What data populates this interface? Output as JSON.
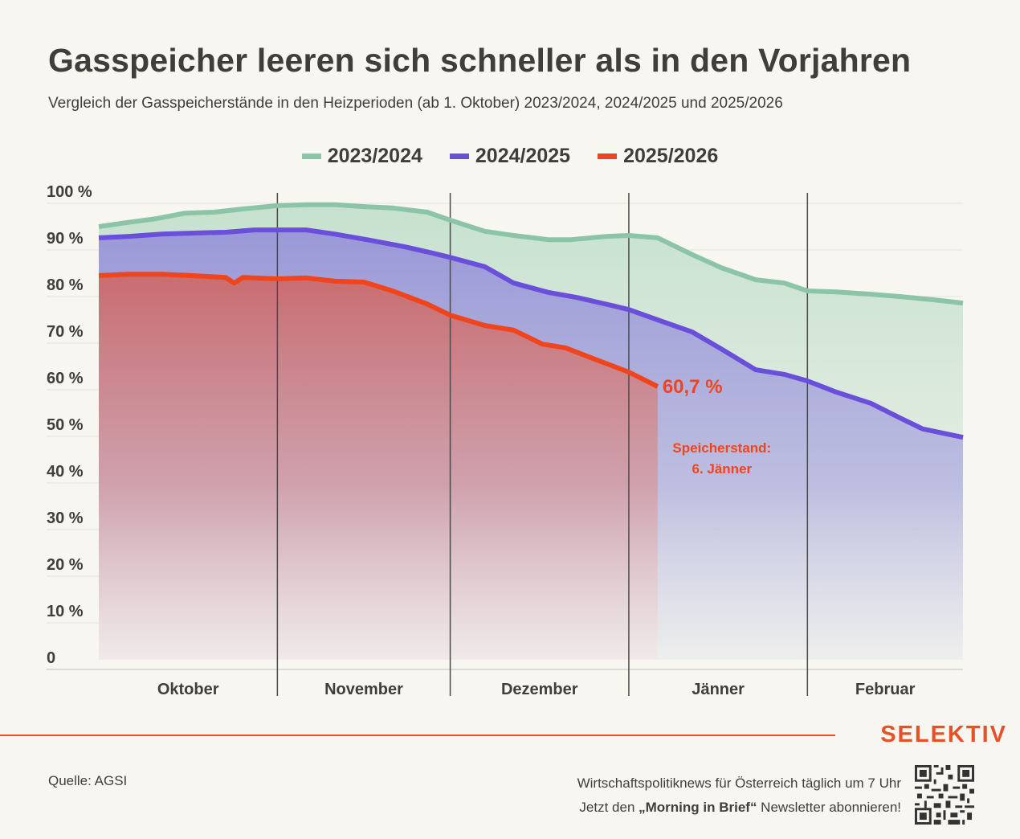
{
  "header": {
    "title": "Gasspeicher leeren sich schneller als in den Vorjahren",
    "subtitle": "Vergleich der Gasspeicherstände in den Heizperioden (ab 1. Oktober) 2023/2024, 2024/2025 und 2025/2026"
  },
  "legend": [
    {
      "label": "2023/2024",
      "color": "#8cc4a8"
    },
    {
      "label": "2024/2025",
      "color": "#6a4fdb"
    },
    {
      "label": "2025/2026",
      "color": "#f0441c"
    }
  ],
  "footer": {
    "brand": "SELEKTIV",
    "source": "Quelle: AGSI",
    "promo_line1": "Wirtschaftspolitiknews für Österreich täglich um 7 Uhr",
    "promo_line2_prefix": "Jetzt den ",
    "promo_line2_bold": "„Morning in Brief“",
    "promo_line2_suffix": " Newsletter abonnieren!",
    "qr_icon": "qr-code-icon"
  },
  "chart_data": {
    "type": "area",
    "title": "Gasspeicher leeren sich schneller als in den Vorjahren",
    "subtitle": "Vergleich der Gasspeicherstände in den Heizperioden (ab 1. Oktober) 2023/2024, 2024/2025 und 2025/2026",
    "xlabel": "",
    "ylabel": "",
    "x_unit": "days since 1 October",
    "xlim": [
      0,
      150
    ],
    "ylim": [
      0,
      100
    ],
    "grid": true,
    "legend_position": "top-center",
    "y_ticks": [
      0,
      10,
      20,
      30,
      40,
      50,
      60,
      70,
      80,
      90,
      100
    ],
    "y_tick_labels": [
      "0",
      "10 %",
      "20 %",
      "30 %",
      "40 %",
      "50 %",
      "60 %",
      "70 %",
      "80 %",
      "90 %",
      "100 %"
    ],
    "months": [
      {
        "label": "Oktober",
        "start": 0,
        "end": 31
      },
      {
        "label": "November",
        "start": 31,
        "end": 61
      },
      {
        "label": "Dezember",
        "start": 61,
        "end": 92
      },
      {
        "label": "Jänner",
        "start": 92,
        "end": 123
      },
      {
        "label": "Februar",
        "start": 123,
        "end": 150
      }
    ],
    "series": [
      {
        "name": "2023/2024",
        "color": "#8cc4a8",
        "fill": "#c9e2d2",
        "x": [
          0,
          5,
          10,
          15,
          20,
          25,
          31,
          36,
          41,
          46,
          51,
          57,
          61,
          67,
          72,
          78,
          82,
          88,
          92,
          97,
          103,
          108,
          114,
          119,
          123,
          128,
          134,
          139,
          145,
          150
        ],
        "values": [
          95.0,
          95.9,
          96.7,
          97.9,
          98.1,
          98.8,
          99.5,
          99.7,
          99.7,
          99.3,
          99.0,
          98.1,
          96.4,
          94.0,
          93.1,
          92.2,
          92.2,
          92.9,
          93.1,
          92.6,
          89.0,
          86.2,
          83.6,
          82.9,
          81.2,
          81.0,
          80.5,
          80.0,
          79.3,
          78.6
        ]
      },
      {
        "name": "2024/2025",
        "color": "#6a4fdb",
        "fill": "#9c9bd8",
        "x": [
          0,
          5,
          11,
          16,
          22,
          27,
          31,
          36,
          41,
          47,
          53,
          58,
          61,
          67,
          72,
          78,
          83,
          89,
          92,
          97,
          103,
          108,
          114,
          119,
          123,
          128,
          134,
          139,
          143,
          150
        ],
        "values": [
          92.6,
          92.9,
          93.4,
          93.6,
          93.8,
          94.3,
          94.3,
          94.3,
          93.4,
          92.1,
          90.7,
          89.3,
          88.4,
          86.4,
          82.9,
          80.9,
          79.8,
          78.1,
          77.2,
          75.0,
          72.4,
          68.8,
          64.3,
          63.3,
          61.9,
          59.5,
          57.1,
          54.0,
          51.6,
          49.8
        ]
      },
      {
        "name": "2025/2026",
        "color": "#f0441c",
        "fill": "#cf6f6f",
        "x": [
          0,
          5,
          11,
          16,
          22,
          23.5,
          25,
          31,
          36,
          41,
          46,
          51,
          57,
          61,
          67,
          72,
          77,
          81,
          86,
          92,
          97
        ],
        "values": [
          84.5,
          84.8,
          84.8,
          84.5,
          84.1,
          82.9,
          84.1,
          83.8,
          84.0,
          83.3,
          83.1,
          81.2,
          78.4,
          76.0,
          73.8,
          72.8,
          69.8,
          69.0,
          66.6,
          63.8,
          60.7
        ]
      }
    ],
    "annotations": [
      {
        "series": "2025/2026",
        "x": 97,
        "value_label": "60,7 %",
        "note_line1": "Speicherstand:",
        "note_line2": "6. Jänner"
      }
    ]
  }
}
